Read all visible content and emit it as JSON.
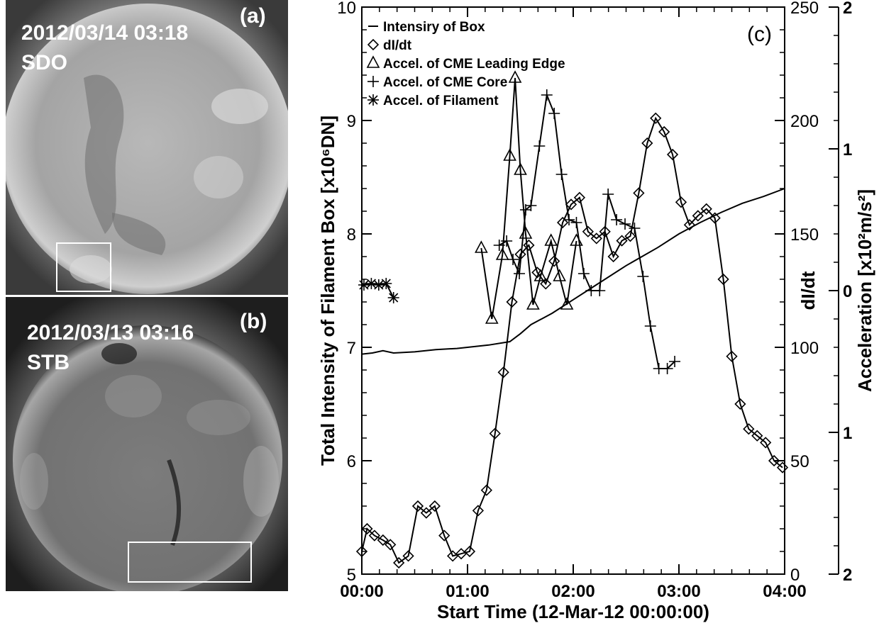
{
  "panels": {
    "a": {
      "date": "2012/03/14 03:18",
      "instrument": "SDO",
      "label": "(a)"
    },
    "b": {
      "date": "2012/03/13 03:16",
      "instrument": "STB",
      "label": "(b)"
    }
  },
  "chart_data": {
    "type": "line",
    "panel_label": "(c)",
    "xlabel": "Start Time (12-Mar-12 00:00:00)",
    "ylabel_left": "Total Intensity of Filament Box [x10⁶DN]",
    "ylabel_right1": "dI/dt",
    "ylabel_right2": "Acceleration [x10²m/s²]",
    "xlim_hours": [
      0,
      4
    ],
    "x_ticks": [
      "00:00",
      "01:00",
      "02:00",
      "03:00",
      "04:00"
    ],
    "ylim_left": [
      5,
      10
    ],
    "y_ticks_left": [
      "5",
      "6",
      "7",
      "8",
      "9",
      "10"
    ],
    "ylim_right1": [
      0,
      250
    ],
    "y_ticks_right1": [
      "0",
      "50",
      "100",
      "150",
      "200",
      "250"
    ],
    "ylim_right2": [
      -2,
      2
    ],
    "y_ticks_right2": [
      {
        "label": "2",
        "value": 2
      },
      {
        "label": "1",
        "value": 1
      },
      {
        "label": "0",
        "value": 0
      },
      {
        "label": "1",
        "value": -1
      },
      {
        "label": "2",
        "value": -2
      }
    ],
    "legend": {
      "placement": "top-left",
      "entries": [
        {
          "marker": "line",
          "label": "Intensiry of Box"
        },
        {
          "marker": "diamond",
          "label": "dI/dt"
        },
        {
          "marker": "triangle",
          "label": "Accel. of CME Leading Edge"
        },
        {
          "marker": "plus",
          "label": "Accel. of CME Core"
        },
        {
          "marker": "asterisk",
          "label": "Accel. of Filament"
        }
      ]
    },
    "series": [
      {
        "name": "Intensiry of Box",
        "axis": "left",
        "marker": "none",
        "x": [
          0,
          0.1,
          0.2,
          0.3,
          0.5,
          0.7,
          0.9,
          1.0,
          1.2,
          1.4,
          1.5,
          1.6,
          1.8,
          2.0,
          2.2,
          2.5,
          2.8,
          3.0,
          3.2,
          3.4,
          3.6,
          3.8,
          4.0
        ],
        "y": [
          6.94,
          6.95,
          6.97,
          6.95,
          6.96,
          6.98,
          6.99,
          7.0,
          7.02,
          7.05,
          7.12,
          7.2,
          7.3,
          7.42,
          7.54,
          7.72,
          7.88,
          8.0,
          8.1,
          8.19,
          8.27,
          8.33,
          8.4
        ]
      },
      {
        "name": "dI/dt",
        "axis": "right1",
        "marker": "diamond",
        "x": [
          0,
          0.05,
          0.12,
          0.2,
          0.27,
          0.35,
          0.44,
          0.53,
          0.61,
          0.69,
          0.78,
          0.86,
          0.94,
          1.02,
          1.1,
          1.18,
          1.26,
          1.34,
          1.42,
          1.5,
          1.58,
          1.66,
          1.74,
          1.82,
          1.9,
          1.98,
          2.06,
          2.14,
          2.22,
          2.3,
          2.38,
          2.46,
          2.54,
          2.62,
          2.7,
          2.78,
          2.86,
          2.94,
          3.02,
          3.1,
          3.18,
          3.26,
          3.34,
          3.42,
          3.5,
          3.58,
          3.66,
          3.74,
          3.82,
          3.9,
          3.98
        ],
        "y": [
          10,
          20,
          17,
          15,
          13,
          5,
          8,
          30,
          27,
          30,
          17,
          8,
          9,
          10,
          28,
          37,
          62,
          89,
          120,
          141,
          145,
          133,
          128,
          138,
          155,
          163,
          166,
          151,
          148,
          151,
          140,
          147,
          149,
          168,
          190,
          201,
          195,
          185,
          164,
          154,
          158,
          161,
          157,
          130,
          96,
          75,
          64,
          61,
          58,
          50,
          47
        ]
      },
      {
        "name": "Accel. of CME Leading Edge",
        "axis": "right2",
        "marker": "triangle",
        "x": [
          1.13,
          1.23,
          1.33,
          1.4,
          1.45,
          1.5,
          1.55,
          1.62,
          1.69,
          1.79,
          1.87,
          1.94,
          2.03
        ],
        "y": [
          0.3,
          -0.2,
          0.25,
          0.95,
          1.5,
          0.85,
          0.4,
          -0.1,
          0.1,
          0.35,
          0.1,
          -0.1,
          0.35
        ]
      },
      {
        "name": "Accel. of CME Core",
        "axis": "right2",
        "marker": "plus",
        "x": [
          1.3,
          1.37,
          1.43,
          1.49,
          1.55,
          1.6,
          1.68,
          1.75,
          1.82,
          1.89,
          1.96,
          2.03,
          2.1,
          2.17,
          2.25,
          2.33,
          2.41,
          2.49,
          2.58,
          2.66,
          2.73,
          2.81,
          2.89,
          2.96
        ],
        "y": [
          0.32,
          0.35,
          0.22,
          0.12,
          0.57,
          0.6,
          1.02,
          1.38,
          1.25,
          0.82,
          0.5,
          0.48,
          0.12,
          0.0,
          0.0,
          0.68,
          0.5,
          0.47,
          0.44,
          0.1,
          -0.25,
          -0.55,
          -0.55,
          -0.5
        ]
      },
      {
        "name": "Accel. of Filament",
        "axis": "right2",
        "marker": "asterisk",
        "x": [
          0.02,
          0.09,
          0.16,
          0.23,
          0.3
        ],
        "y": [
          0.04,
          0.05,
          0.04,
          0.05,
          -0.05
        ]
      }
    ]
  }
}
